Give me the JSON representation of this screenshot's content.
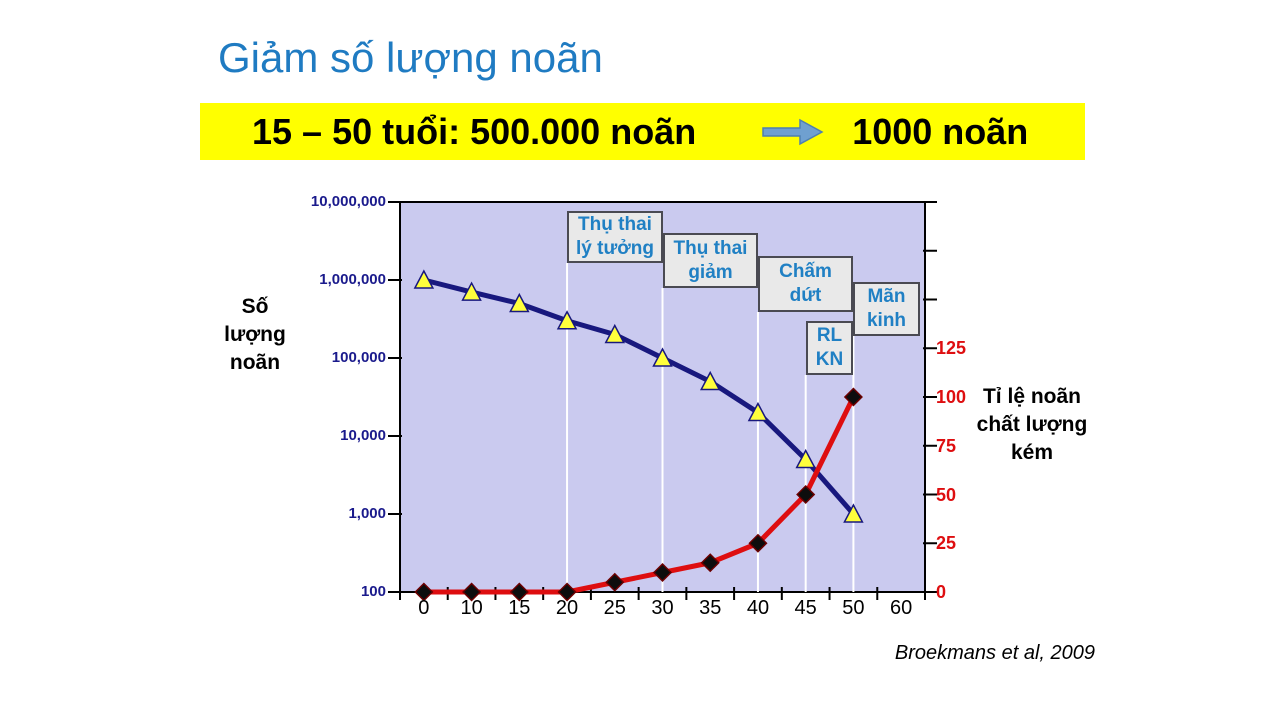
{
  "slide": {
    "title": "Giảm số lượng noãn",
    "citation": "Broekmans et al, 2009"
  },
  "banner": {
    "left_text": "15 – 50 tuổi: 500.000 noãn",
    "right_text": "1000 noãn",
    "bg_color": "#FFFF00",
    "arrow_color": "#6FA0D0"
  },
  "colors": {
    "title_blue": "#1F7BC2",
    "annotation_blue": "#2080C4",
    "plot_background": "#CACAEF",
    "left_axis_label": "#1A1A8C",
    "right_axis_label": "#DE0E10"
  },
  "chart_data": {
    "type": "line",
    "categories": [
      "0",
      "10",
      "15",
      "20",
      "25",
      "30",
      "35",
      "40",
      "45",
      "50",
      "60"
    ],
    "series": [
      {
        "name": "Số lượng noãn",
        "axis": "left",
        "color": "#18187E",
        "marker": "triangle",
        "marker_fill": "#FFFF3C",
        "values": [
          1000000,
          700000,
          500000,
          300000,
          200000,
          100000,
          50000,
          20000,
          5000,
          1000,
          null
        ]
      },
      {
        "name": "Tỉ lệ noãn chất lượng kém",
        "axis": "right",
        "color": "#DE0E10",
        "marker": "diamond",
        "marker_fill": "#0D0D0D",
        "values": [
          0,
          0,
          0,
          0,
          5,
          10,
          15,
          25,
          50,
          100,
          null
        ]
      }
    ],
    "left_axis": {
      "title": "Số\nlượng\nnoãn",
      "scale": "log",
      "tick_labels": [
        "10,000,000",
        "1,000,000",
        "100,000",
        "10,000",
        "1,000",
        "100"
      ],
      "tick_values": [
        10000000,
        1000000,
        100000,
        10000,
        1000,
        100
      ],
      "range": [
        100,
        10000000
      ]
    },
    "right_axis": {
      "title": "Tỉ lệ noãn\nchất lượng\nkém",
      "scale": "linear",
      "tick_values": [
        125,
        100,
        75,
        50,
        25,
        0
      ],
      "unlabeled_tick_values": [
        150,
        175,
        200
      ],
      "range": [
        0,
        200
      ]
    },
    "plot_background": "#CACAEF",
    "phase_line_ages": [
      "20",
      "30",
      "40",
      "45",
      "50"
    ],
    "phase_line_color": "#FFFFFF",
    "annotations": [
      {
        "label": "Thụ thai\nlý tưởng"
      },
      {
        "label": "Thụ thai\ngiảm"
      },
      {
        "label": "Chấm\ndứt"
      },
      {
        "label": "Mãn\nkinh"
      },
      {
        "label": "RL\nKN"
      }
    ],
    "legend": "none",
    "grid": "phase-separators-only"
  }
}
